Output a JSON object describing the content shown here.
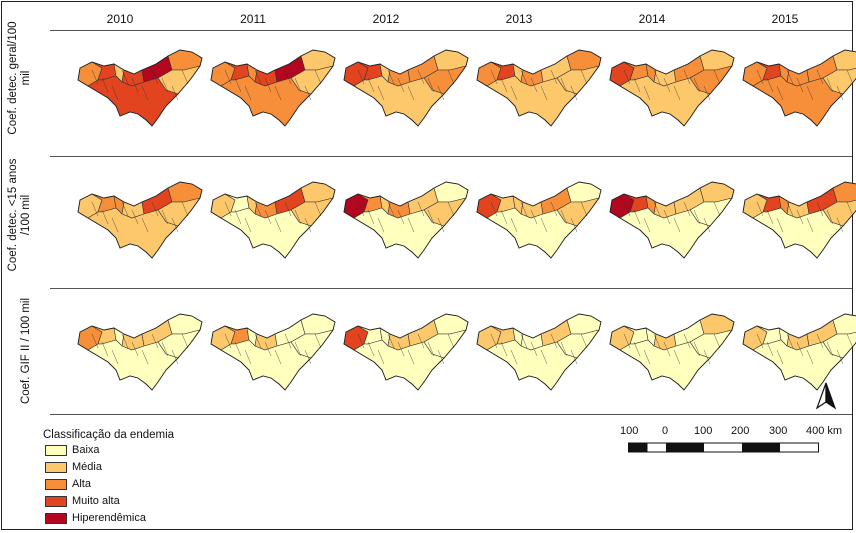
{
  "years": [
    "2010",
    "2011",
    "2012",
    "2013",
    "2014",
    "2015"
  ],
  "rows": [
    {
      "label": "Coef. detec. geral/100 mil",
      "line1": "Coef. detec. geral/100",
      "line2": "mil"
    },
    {
      "label": "Coef. detec. <15 anos /100 mil",
      "line1": "Coef. detec. <15 anos",
      "line2": "/100 mil"
    },
    {
      "label": "Coef. GIF II / 100 mil",
      "line1": "Coef. GIF II / 100 mil",
      "line2": ""
    }
  ],
  "legend": {
    "title": "Classificação da endemia",
    "items": [
      {
        "label": "Baixa",
        "color": "#ffffbe"
      },
      {
        "label": "Média",
        "color": "#fdc86b"
      },
      {
        "label": "Alta",
        "color": "#f78f3a"
      },
      {
        "label": "Muito alta",
        "color": "#e1441f"
      },
      {
        "label": "Hiperendêmica",
        "color": "#b3061f"
      }
    ]
  },
  "scale": {
    "labels": [
      "100",
      "0",
      "100",
      "200",
      "300",
      "400 km"
    ]
  },
  "north_arrow": "north-arrow-icon",
  "map_palettes": [
    [
      [
        2,
        3,
        1,
        3,
        4,
        2,
        1,
        3
      ],
      [
        1,
        2,
        2,
        1,
        3,
        2,
        1,
        1
      ],
      [
        2,
        1,
        0,
        1,
        1,
        0,
        0,
        0
      ]
    ],
    [
      [
        2,
        3,
        2,
        3,
        4,
        1,
        1,
        2
      ],
      [
        1,
        0,
        1,
        2,
        3,
        1,
        1,
        0
      ],
      [
        1,
        2,
        0,
        1,
        0,
        0,
        0,
        0
      ]
    ],
    [
      [
        3,
        3,
        1,
        2,
        2,
        1,
        2,
        1
      ],
      [
        4,
        2,
        1,
        2,
        1,
        0,
        1,
        0
      ],
      [
        3,
        0,
        0,
        1,
        1,
        0,
        0,
        0
      ]
    ],
    [
      [
        2,
        3,
        1,
        2,
        1,
        2,
        1,
        1
      ],
      [
        3,
        1,
        1,
        1,
        2,
        0,
        1,
        0
      ],
      [
        1,
        1,
        0,
        0,
        1,
        0,
        0,
        0
      ]
    ],
    [
      [
        3,
        2,
        2,
        1,
        2,
        1,
        2,
        1
      ],
      [
        4,
        3,
        2,
        1,
        1,
        1,
        0,
        0
      ],
      [
        1,
        0,
        0,
        1,
        0,
        1,
        0,
        0
      ]
    ],
    [
      [
        2,
        3,
        2,
        2,
        2,
        1,
        1,
        2
      ],
      [
        1,
        3,
        2,
        1,
        3,
        2,
        1,
        0
      ],
      [
        1,
        0,
        0,
        1,
        1,
        0,
        0,
        0
      ]
    ]
  ]
}
